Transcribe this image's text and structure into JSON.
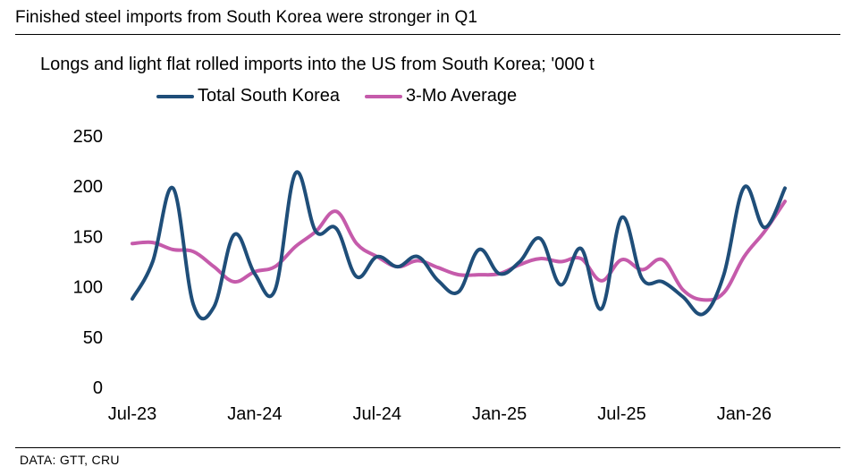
{
  "headline": "Finished steel imports from South Korea were stronger in Q1",
  "source": "DATA: GTT, CRU",
  "chart_data": {
    "type": "line",
    "title": "Longs and light flat rolled imports into the US from South Korea; '000 t",
    "xlabel": "",
    "ylabel": "",
    "ylim": [
      0,
      250
    ],
    "yticks": [
      "0",
      "50",
      "100",
      "150",
      "200",
      "250"
    ],
    "xticks": [
      {
        "label": "Jul-23",
        "index": 0
      },
      {
        "label": "Jan-24",
        "index": 6
      },
      {
        "label": "Jul-24",
        "index": 12
      },
      {
        "label": "Jan-25",
        "index": 18
      },
      {
        "label": "Jul-25",
        "index": 24
      },
      {
        "label": "Jan-26",
        "index": 30
      }
    ],
    "grid": false,
    "legend_position": "top",
    "categories": [
      "Jul-23",
      "Aug-23",
      "Sep-23",
      "Oct-23",
      "Nov-23",
      "Dec-23",
      "Jan-24",
      "Feb-24",
      "Mar-24",
      "Apr-24",
      "May-24",
      "Jun-24",
      "Jul-24",
      "Aug-24",
      "Sep-24",
      "Oct-24",
      "Nov-24",
      "Dec-24",
      "Jan-25",
      "Feb-25",
      "Mar-25",
      "Apr-25",
      "May-25",
      "Jun-25",
      "Jul-25",
      "Aug-25",
      "Sep-25",
      "Oct-25",
      "Nov-25",
      "Dec-25",
      "Jan-26",
      "Feb-26",
      "Mar-26"
    ],
    "series": [
      {
        "name": "Total South Korea",
        "color": "#1f4e79",
        "values": [
          88,
          125,
          198,
          82,
          80,
          152,
          113,
          97,
          213,
          155,
          158,
          110,
          130,
          120,
          130,
          106,
          95,
          137,
          113,
          125,
          148,
          102,
          138,
          78,
          169,
          108,
          105,
          90,
          73,
          112,
          199,
          159,
          198
        ]
      },
      {
        "name": "3-Mo Average",
        "color": "#c55bab",
        "values": [
          143,
          144,
          137,
          135,
          120,
          105,
          115,
          120,
          140,
          155,
          175,
          143,
          130,
          120,
          126,
          119,
          112,
          112,
          113,
          122,
          128,
          125,
          128,
          106,
          127,
          117,
          127,
          97,
          87,
          94,
          130,
          155,
          185
        ]
      }
    ]
  }
}
